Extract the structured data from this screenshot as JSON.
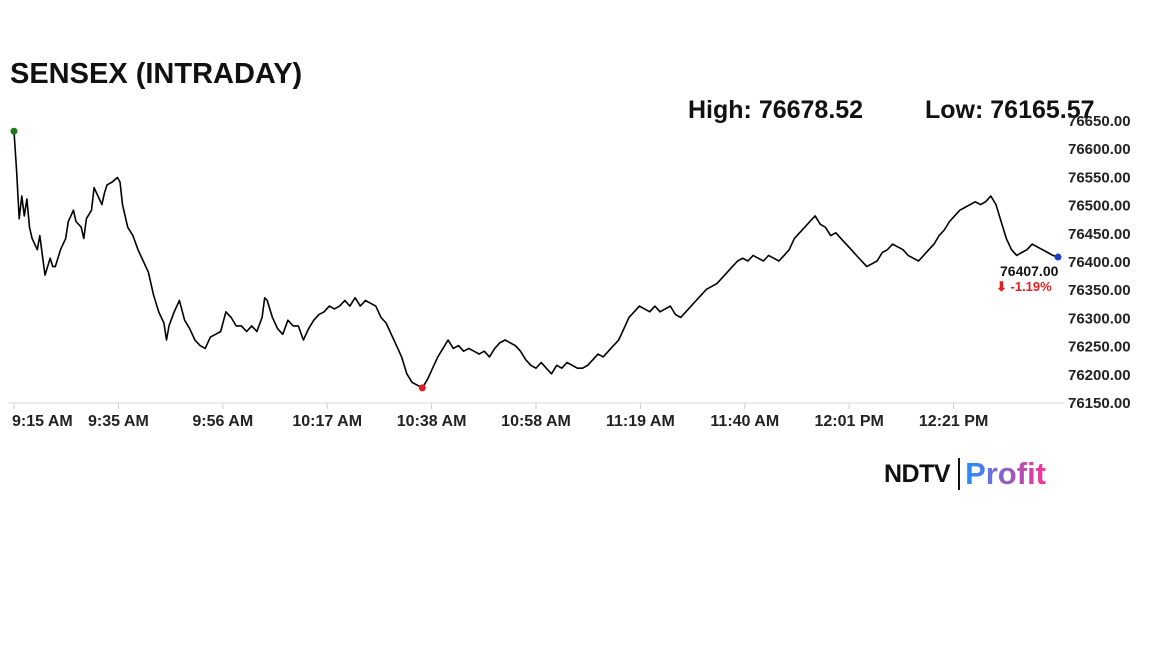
{
  "header": {
    "title": "SENSEX (INTRADAY)",
    "high_text": "High: 76678.52",
    "low_text": "Low: 76165.57"
  },
  "brand": {
    "ndtv": "NDTV",
    "profit": "Profit",
    "colors": {
      "profit_start": "#1e90ff",
      "profit_end": "#ff2d95"
    }
  },
  "chart_data": {
    "type": "line",
    "title": "SENSEX (INTRADAY)",
    "xlabel": "",
    "ylabel": "",
    "x_ticks": [
      "9:15 AM",
      "9:35 AM",
      "9:56 AM",
      "10:17 AM",
      "10:38 AM",
      "10:58 AM",
      "11:19 AM",
      "11:40 AM",
      "12:01 PM",
      "12:21 PM"
    ],
    "y_ticks": [
      "76650.00",
      "76600.00",
      "76550.00",
      "76500.00",
      "76450.00",
      "76400.00",
      "76350.00",
      "76300.00",
      "76250.00",
      "76200.00",
      "76150.00"
    ],
    "ylim": [
      76150,
      76650
    ],
    "x_unit": "minutes after 9:15 AM",
    "xlim": [
      0,
      202
    ],
    "grid": false,
    "series": [
      {
        "points": [
          [
            0,
            76630
          ],
          [
            0.5,
            76560
          ],
          [
            1,
            76475
          ],
          [
            1.5,
            76515
          ],
          [
            2,
            76480
          ],
          [
            2.5,
            76510
          ],
          [
            3,
            76460
          ],
          [
            3.5,
            76440
          ],
          [
            4,
            76430
          ],
          [
            4.5,
            76420
          ],
          [
            5,
            76445
          ],
          [
            5.5,
            76410
          ],
          [
            6,
            76375
          ],
          [
            6.5,
            76390
          ],
          [
            7,
            76405
          ],
          [
            7.5,
            76390
          ],
          [
            8,
            76390
          ],
          [
            9,
            76420
          ],
          [
            10,
            76440
          ],
          [
            10.5,
            76470
          ],
          [
            11,
            76480
          ],
          [
            11.5,
            76490
          ],
          [
            12,
            76470
          ],
          [
            13,
            76460
          ],
          [
            13.5,
            76440
          ],
          [
            14,
            76475
          ],
          [
            15,
            76490
          ],
          [
            15.5,
            76530
          ],
          [
            16,
            76520
          ],
          [
            17,
            76500
          ],
          [
            17.5,
            76520
          ],
          [
            18,
            76535
          ],
          [
            19,
            76540
          ],
          [
            20,
            76548
          ],
          [
            20.5,
            76540
          ],
          [
            21,
            76500
          ],
          [
            22,
            76460
          ],
          [
            23,
            76445
          ],
          [
            24,
            76420
          ],
          [
            25,
            76400
          ],
          [
            26,
            76380
          ],
          [
            27,
            76340
          ],
          [
            28,
            76310
          ],
          [
            29,
            76290
          ],
          [
            29.5,
            76260
          ],
          [
            30,
            76285
          ],
          [
            31,
            76310
          ],
          [
            32,
            76330
          ],
          [
            33,
            76295
          ],
          [
            34,
            76280
          ],
          [
            35,
            76260
          ],
          [
            36,
            76250
          ],
          [
            37,
            76245
          ],
          [
            38,
            76265
          ],
          [
            39,
            76270
          ],
          [
            40,
            76275
          ],
          [
            41,
            76310
          ],
          [
            42,
            76300
          ],
          [
            43,
            76285
          ],
          [
            44,
            76285
          ],
          [
            45,
            76275
          ],
          [
            46,
            76285
          ],
          [
            47,
            76275
          ],
          [
            48,
            76300
          ],
          [
            48.5,
            76335
          ],
          [
            49,
            76330
          ],
          [
            50,
            76300
          ],
          [
            51,
            76280
          ],
          [
            52,
            76270
          ],
          [
            53,
            76295
          ],
          [
            54,
            76285
          ],
          [
            55,
            76285
          ],
          [
            56,
            76260
          ],
          [
            57,
            76280
          ],
          [
            58,
            76295
          ],
          [
            59,
            76305
          ],
          [
            60,
            76310
          ],
          [
            61,
            76320
          ],
          [
            62,
            76315
          ],
          [
            63,
            76320
          ],
          [
            64,
            76330
          ],
          [
            65,
            76320
          ],
          [
            66,
            76335
          ],
          [
            67,
            76320
          ],
          [
            68,
            76330
          ],
          [
            69,
            76325
          ],
          [
            70,
            76320
          ],
          [
            71,
            76300
          ],
          [
            72,
            76290
          ],
          [
            73,
            76270
          ],
          [
            74,
            76250
          ],
          [
            75,
            76230
          ],
          [
            76,
            76200
          ],
          [
            77,
            76185
          ],
          [
            78,
            76180
          ],
          [
            79,
            76175
          ],
          [
            80,
            76190
          ],
          [
            81,
            76210
          ],
          [
            82,
            76230
          ],
          [
            83,
            76245
          ],
          [
            84,
            76260
          ],
          [
            85,
            76245
          ],
          [
            86,
            76250
          ],
          [
            87,
            76240
          ],
          [
            88,
            76245
          ],
          [
            89,
            76240
          ],
          [
            90,
            76235
          ],
          [
            91,
            76240
          ],
          [
            92,
            76230
          ],
          [
            93,
            76245
          ],
          [
            94,
            76255
          ],
          [
            95,
            76260
          ],
          [
            96,
            76255
          ],
          [
            97,
            76250
          ],
          [
            98,
            76240
          ],
          [
            99,
            76225
          ],
          [
            100,
            76215
          ],
          [
            101,
            76210
          ],
          [
            102,
            76220
          ],
          [
            103,
            76210
          ],
          [
            104,
            76200
          ],
          [
            105,
            76215
          ],
          [
            106,
            76210
          ],
          [
            107,
            76220
          ],
          [
            108,
            76215
          ],
          [
            109,
            76210
          ],
          [
            110,
            76210
          ],
          [
            111,
            76215
          ],
          [
            112,
            76225
          ],
          [
            113,
            76235
          ],
          [
            114,
            76230
          ],
          [
            115,
            76240
          ],
          [
            116,
            76250
          ],
          [
            117,
            76260
          ],
          [
            118,
            76280
          ],
          [
            119,
            76300
          ],
          [
            120,
            76310
          ],
          [
            121,
            76320
          ],
          [
            122,
            76315
          ],
          [
            123,
            76310
          ],
          [
            124,
            76320
          ],
          [
            125,
            76310
          ],
          [
            126,
            76315
          ],
          [
            127,
            76320
          ],
          [
            128,
            76305
          ],
          [
            129,
            76300
          ],
          [
            130,
            76310
          ],
          [
            131,
            76320
          ],
          [
            132,
            76330
          ],
          [
            133,
            76340
          ],
          [
            134,
            76350
          ],
          [
            135,
            76355
          ],
          [
            136,
            76360
          ],
          [
            137,
            76370
          ],
          [
            138,
            76380
          ],
          [
            139,
            76390
          ],
          [
            140,
            76400
          ],
          [
            141,
            76405
          ],
          [
            142,
            76400
          ],
          [
            143,
            76410
          ],
          [
            144,
            76405
          ],
          [
            145,
            76400
          ],
          [
            146,
            76410
          ],
          [
            147,
            76405
          ],
          [
            148,
            76400
          ],
          [
            149,
            76410
          ],
          [
            150,
            76420
          ],
          [
            151,
            76440
          ],
          [
            152,
            76450
          ],
          [
            153,
            76460
          ],
          [
            154,
            76470
          ],
          [
            155,
            76480
          ],
          [
            156,
            76465
          ],
          [
            157,
            76460
          ],
          [
            158,
            76445
          ],
          [
            159,
            76450
          ],
          [
            160,
            76440
          ],
          [
            161,
            76430
          ],
          [
            162,
            76420
          ],
          [
            163,
            76410
          ],
          [
            164,
            76400
          ],
          [
            165,
            76390
          ],
          [
            166,
            76395
          ],
          [
            167,
            76400
          ],
          [
            168,
            76415
          ],
          [
            169,
            76420
          ],
          [
            170,
            76430
          ],
          [
            171,
            76425
          ],
          [
            172,
            76420
          ],
          [
            173,
            76410
          ],
          [
            174,
            76405
          ],
          [
            175,
            76400
          ],
          [
            176,
            76410
          ],
          [
            177,
            76420
          ],
          [
            178,
            76430
          ],
          [
            179,
            76445
          ],
          [
            180,
            76455
          ],
          [
            181,
            76470
          ],
          [
            182,
            76480
          ],
          [
            183,
            76490
          ],
          [
            184,
            76495
          ],
          [
            185,
            76500
          ],
          [
            186,
            76505
          ],
          [
            187,
            76500
          ],
          [
            188,
            76505
          ],
          [
            189,
            76515
          ],
          [
            190,
            76500
          ],
          [
            191,
            76470
          ],
          [
            192,
            76440
          ],
          [
            193,
            76420
          ],
          [
            194,
            76410
          ],
          [
            195,
            76415
          ],
          [
            196,
            76420
          ],
          [
            197,
            76430
          ],
          [
            198,
            76425
          ],
          [
            199,
            76420
          ],
          [
            200,
            76415
          ],
          [
            201,
            76410
          ],
          [
            202,
            76407
          ]
        ]
      }
    ],
    "markers": {
      "open": {
        "x": 0,
        "y": 76630,
        "color": "#1a7a1a"
      },
      "low": {
        "x": 79,
        "y": 76175,
        "color": "#e02020"
      },
      "last": {
        "x": 202,
        "y": 76407,
        "color": "#1a3fc4"
      }
    },
    "last_value": "76407.00",
    "change": "⬇ -1.19%",
    "change_color": "#e02020",
    "line_color": "#000000",
    "axis_color": "#d8d8d8"
  }
}
